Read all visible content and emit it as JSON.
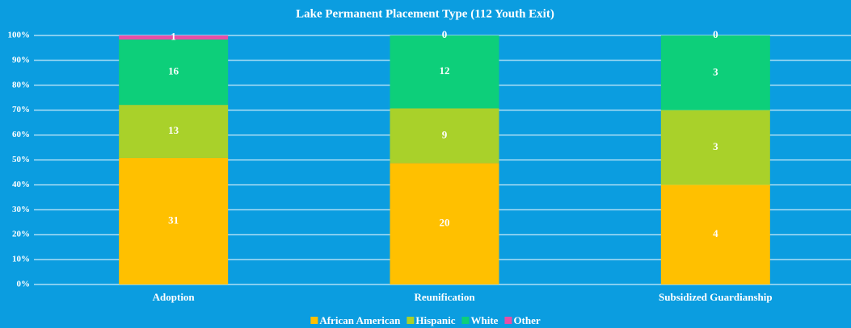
{
  "chart_data": {
    "type": "bar",
    "stacking": "percent",
    "title": "Lake Permanent Placement Type (112 Youth Exit)",
    "categories": [
      "Adoption",
      "Reunification",
      "Subsidized Guardianship"
    ],
    "series": [
      {
        "name": "African American",
        "color": "#ffc000",
        "values": [
          31,
          20,
          4
        ]
      },
      {
        "name": "Hispanic",
        "color": "#a9d12a",
        "values": [
          13,
          9,
          3
        ]
      },
      {
        "name": "White",
        "color": "#0dcf7a",
        "values": [
          16,
          12,
          3
        ]
      },
      {
        "name": "Other",
        "color": "#e64fa6",
        "values": [
          1,
          0,
          0
        ]
      }
    ],
    "ylim": [
      0,
      100
    ],
    "yticks": [
      {
        "value": 0,
        "label": "0%"
      },
      {
        "value": 10,
        "label": "10%"
      },
      {
        "value": 20,
        "label": "20%"
      },
      {
        "value": 30,
        "label": "30%"
      },
      {
        "value": 40,
        "label": "40%"
      },
      {
        "value": 50,
        "label": "50%"
      },
      {
        "value": 60,
        "label": "60%"
      },
      {
        "value": 70,
        "label": "70%"
      },
      {
        "value": 80,
        "label": "80%"
      },
      {
        "value": 90,
        "label": "90%"
      },
      {
        "value": 100,
        "label": "100%"
      }
    ],
    "grid": true,
    "legend": "bottom"
  }
}
